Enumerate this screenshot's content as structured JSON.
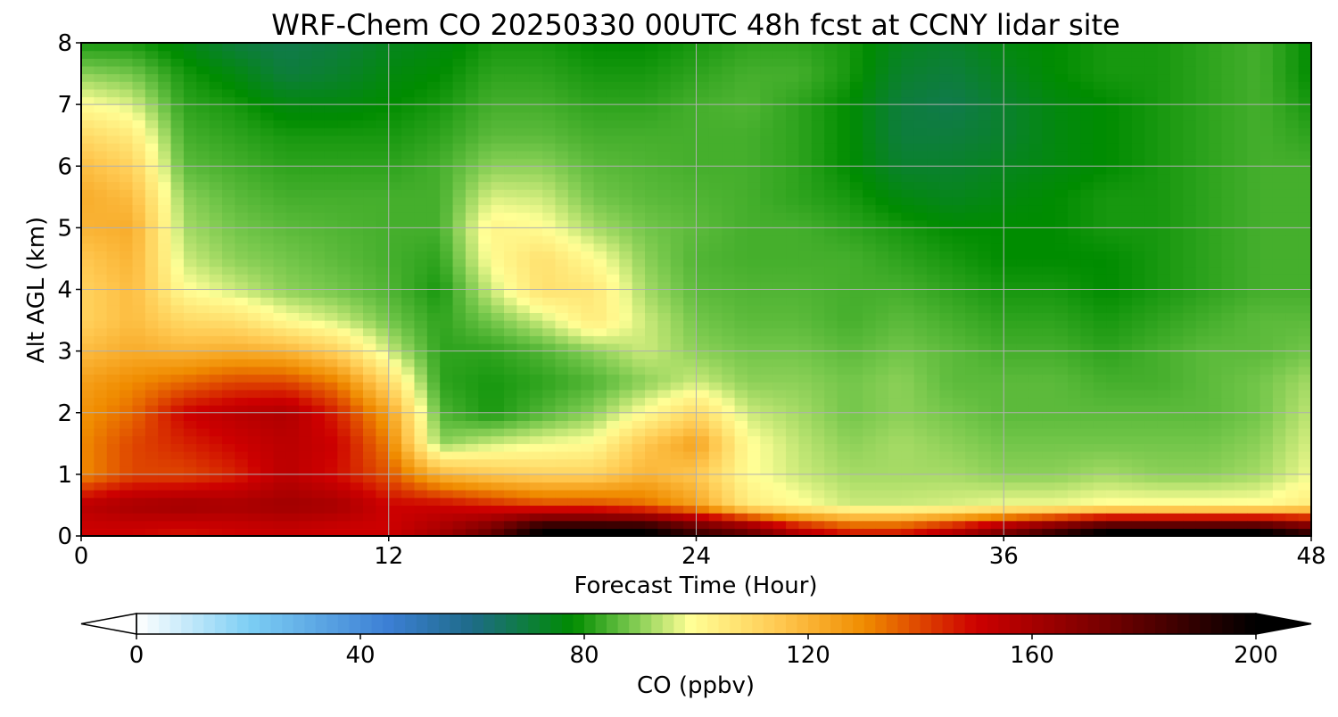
{
  "chart_data": {
    "type": "heatmap",
    "title": "WRF-Chem CO  20250330 00UTC 48h fcst at CCNY lidar site",
    "xlabel": "Forecast Time (Hour)",
    "ylabel": "Alt AGL (km)",
    "xlim": [
      0,
      48
    ],
    "ylim": [
      0,
      8
    ],
    "x_ticks": [
      0,
      12,
      24,
      36,
      48
    ],
    "x_tick_labels": [
      "0",
      "12",
      "24",
      "36",
      "48"
    ],
    "y_ticks": [
      0,
      1,
      2,
      3,
      4,
      5,
      6,
      7,
      8
    ],
    "y_tick_labels": [
      "0",
      "1",
      "2",
      "3",
      "4",
      "5",
      "6",
      "7",
      "8"
    ],
    "grid": true,
    "value_units": "ppbv",
    "x_hours": [
      0,
      2,
      4,
      6,
      8,
      10,
      12,
      14,
      16,
      18,
      20,
      22,
      24,
      26,
      28,
      30,
      32,
      34,
      36,
      38,
      40,
      42,
      44,
      46,
      48
    ],
    "z_km": [
      0.1,
      0.5,
      1.0,
      1.5,
      2.0,
      2.5,
      3.0,
      3.5,
      4.0,
      4.5,
      5.0,
      5.5,
      6.0,
      6.5,
      7.0,
      7.5,
      8.0
    ],
    "co_ppbv": [
      [
        150,
        150,
        148,
        150,
        152,
        150,
        150,
        160,
        175,
        200,
        200,
        200,
        185,
        175,
        155,
        145,
        145,
        155,
        170,
        185,
        200,
        200,
        200,
        200,
        185
      ],
      [
        155,
        160,
        162,
        160,
        162,
        160,
        150,
        150,
        145,
        140,
        140,
        135,
        125,
        105,
        100,
        95,
        95,
        96,
        98,
        98,
        100,
        100,
        100,
        100,
        105
      ],
      [
        130,
        140,
        140,
        145,
        155,
        148,
        138,
        120,
        115,
        112,
        112,
        120,
        115,
        100,
        95,
        92,
        92,
        92,
        90,
        90,
        92,
        90,
        90,
        92,
        98
      ],
      [
        130,
        140,
        145,
        150,
        155,
        150,
        132,
        90,
        95,
        98,
        100,
        115,
        125,
        100,
        94,
        90,
        92,
        90,
        88,
        88,
        88,
        88,
        88,
        90,
        96
      ],
      [
        128,
        135,
        150,
        155,
        158,
        145,
        125,
        85,
        80,
        85,
        90,
        100,
        110,
        95,
        92,
        88,
        90,
        88,
        86,
        86,
        86,
        86,
        86,
        88,
        94
      ],
      [
        125,
        130,
        135,
        140,
        140,
        132,
        110,
        82,
        80,
        82,
        85,
        90,
        95,
        90,
        90,
        88,
        90,
        86,
        86,
        86,
        84,
        84,
        86,
        88,
        92
      ],
      [
        118,
        122,
        120,
        122,
        120,
        112,
        95,
        82,
        82,
        85,
        90,
        95,
        90,
        88,
        88,
        86,
        88,
        86,
        84,
        84,
        82,
        84,
        86,
        86,
        88
      ],
      [
        112,
        118,
        110,
        108,
        100,
        95,
        88,
        82,
        88,
        95,
        105,
        95,
        88,
        86,
        86,
        84,
        86,
        84,
        82,
        82,
        80,
        82,
        84,
        86,
        86
      ],
      [
        112,
        118,
        100,
        95,
        90,
        88,
        85,
        80,
        95,
        108,
        106,
        92,
        86,
        85,
        85,
        84,
        84,
        82,
        80,
        80,
        78,
        80,
        82,
        84,
        84
      ],
      [
        115,
        120,
        95,
        90,
        88,
        86,
        84,
        82,
        100,
        108,
        100,
        90,
        85,
        84,
        84,
        84,
        82,
        80,
        78,
        78,
        78,
        80,
        82,
        84,
        84
      ],
      [
        120,
        122,
        92,
        88,
        86,
        85,
        84,
        84,
        102,
        100,
        92,
        88,
        86,
        84,
        84,
        82,
        80,
        78,
        78,
        78,
        80,
        80,
        82,
        84,
        84
      ],
      [
        122,
        118,
        90,
        86,
        84,
        84,
        84,
        84,
        96,
        95,
        88,
        86,
        85,
        84,
        82,
        80,
        76,
        74,
        76,
        78,
        80,
        80,
        82,
        84,
        84
      ],
      [
        118,
        112,
        86,
        84,
        82,
        82,
        82,
        84,
        90,
        90,
        86,
        85,
        84,
        84,
        82,
        78,
        72,
        72,
        74,
        76,
        78,
        80,
        82,
        84,
        84
      ],
      [
        110,
        105,
        84,
        82,
        80,
        80,
        80,
        82,
        86,
        86,
        84,
        84,
        84,
        84,
        82,
        78,
        70,
        70,
        72,
        76,
        78,
        80,
        82,
        84,
        82
      ],
      [
        100,
        96,
        82,
        80,
        76,
        76,
        78,
        80,
        84,
        84,
        82,
        82,
        84,
        85,
        82,
        78,
        70,
        68,
        72,
        76,
        78,
        80,
        82,
        84,
        80
      ],
      [
        90,
        88,
        80,
        76,
        70,
        72,
        76,
        78,
        82,
        82,
        80,
        80,
        82,
        84,
        84,
        80,
        72,
        70,
        74,
        78,
        80,
        80,
        82,
        84,
        78
      ],
      [
        80,
        80,
        76,
        70,
        68,
        70,
        74,
        76,
        80,
        80,
        78,
        78,
        80,
        82,
        82,
        80,
        74,
        72,
        76,
        78,
        80,
        80,
        82,
        84,
        78
      ]
    ],
    "colorbar": {
      "label": "CO  (ppbv)",
      "min": 0,
      "max": 200,
      "ticks": [
        0,
        40,
        80,
        120,
        160,
        200
      ],
      "tick_labels": [
        "0",
        "40",
        "80",
        "120",
        "160",
        "200"
      ],
      "extend": "both",
      "stops": [
        {
          "v": 0,
          "c": "#ffffff"
        },
        {
          "v": 20,
          "c": "#7dcff4"
        },
        {
          "v": 45,
          "c": "#3c7fd4"
        },
        {
          "v": 60,
          "c": "#1e6b88"
        },
        {
          "v": 78,
          "c": "#008c00"
        },
        {
          "v": 88,
          "c": "#73c64a"
        },
        {
          "v": 99,
          "c": "#ffff96"
        },
        {
          "v": 115,
          "c": "#ffc850"
        },
        {
          "v": 130,
          "c": "#f08c00"
        },
        {
          "v": 150,
          "c": "#cd0000"
        },
        {
          "v": 175,
          "c": "#6e0000"
        },
        {
          "v": 200,
          "c": "#000000"
        }
      ]
    }
  }
}
